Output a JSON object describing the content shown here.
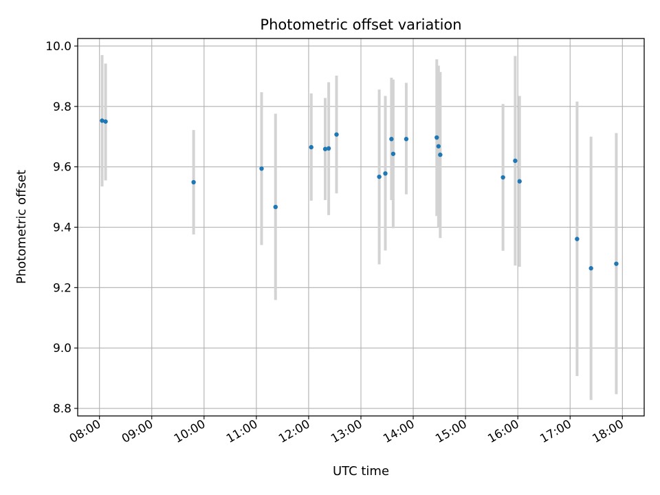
{
  "chart_data": {
    "type": "scatter",
    "title": "Photometric offset variation",
    "xlabel": "UTC time",
    "ylabel": "Photometric offset",
    "x_ticks": [
      "08:00",
      "09:00",
      "10:00",
      "11:00",
      "12:00",
      "13:00",
      "14:00",
      "15:00",
      "16:00",
      "17:00",
      "18:00"
    ],
    "y_ticks": [
      "8.8",
      "9.0",
      "9.2",
      "9.4",
      "9.6",
      "9.8",
      "10.0"
    ],
    "xlim": [
      "07:35",
      "18:25"
    ],
    "ylim": [
      8.775,
      10.025
    ],
    "grid": true,
    "marker_color": "#1f77b4",
    "errorbar_color": "#d3d3d3",
    "points": [
      {
        "x": "08:03",
        "y": 9.753,
        "ymin": 9.535,
        "ymax": 9.97
      },
      {
        "x": "08:07",
        "y": 9.75,
        "ymin": 9.555,
        "ymax": 9.942
      },
      {
        "x": "09:48",
        "y": 9.549,
        "ymin": 9.376,
        "ymax": 9.722
      },
      {
        "x": "11:06",
        "y": 9.594,
        "ymin": 9.341,
        "ymax": 9.847
      },
      {
        "x": "11:22",
        "y": 9.467,
        "ymin": 9.159,
        "ymax": 9.776
      },
      {
        "x": "12:03",
        "y": 9.665,
        "ymin": 9.488,
        "ymax": 9.843
      },
      {
        "x": "12:19",
        "y": 9.659,
        "ymin": 9.49,
        "ymax": 9.828
      },
      {
        "x": "12:23",
        "y": 9.661,
        "ymin": 9.44,
        "ymax": 9.88
      },
      {
        "x": "12:32",
        "y": 9.707,
        "ymin": 9.512,
        "ymax": 9.902
      },
      {
        "x": "13:21",
        "y": 9.567,
        "ymin": 9.277,
        "ymax": 9.856
      },
      {
        "x": "13:28",
        "y": 9.578,
        "ymin": 9.323,
        "ymax": 9.835
      },
      {
        "x": "13:35",
        "y": 9.692,
        "ymin": 9.49,
        "ymax": 9.895
      },
      {
        "x": "13:37",
        "y": 9.643,
        "ymin": 9.397,
        "ymax": 9.889
      },
      {
        "x": "13:52",
        "y": 9.692,
        "ymin": 9.509,
        "ymax": 9.878
      },
      {
        "x": "14:27",
        "y": 9.697,
        "ymin": 9.437,
        "ymax": 9.956
      },
      {
        "x": "14:29",
        "y": 9.668,
        "ymin": 9.4,
        "ymax": 9.935
      },
      {
        "x": "14:31",
        "y": 9.64,
        "ymin": 9.364,
        "ymax": 9.914
      },
      {
        "x": "15:43",
        "y": 9.565,
        "ymin": 9.322,
        "ymax": 9.808
      },
      {
        "x": "15:57",
        "y": 9.62,
        "ymin": 9.273,
        "ymax": 9.967
      },
      {
        "x": "16:02",
        "y": 9.552,
        "ymin": 9.269,
        "ymax": 9.835
      },
      {
        "x": "17:08",
        "y": 9.361,
        "ymin": 8.907,
        "ymax": 9.816
      },
      {
        "x": "17:24",
        "y": 9.264,
        "ymin": 8.828,
        "ymax": 9.7
      },
      {
        "x": "17:53",
        "y": 9.279,
        "ymin": 8.847,
        "ymax": 9.712
      }
    ]
  }
}
